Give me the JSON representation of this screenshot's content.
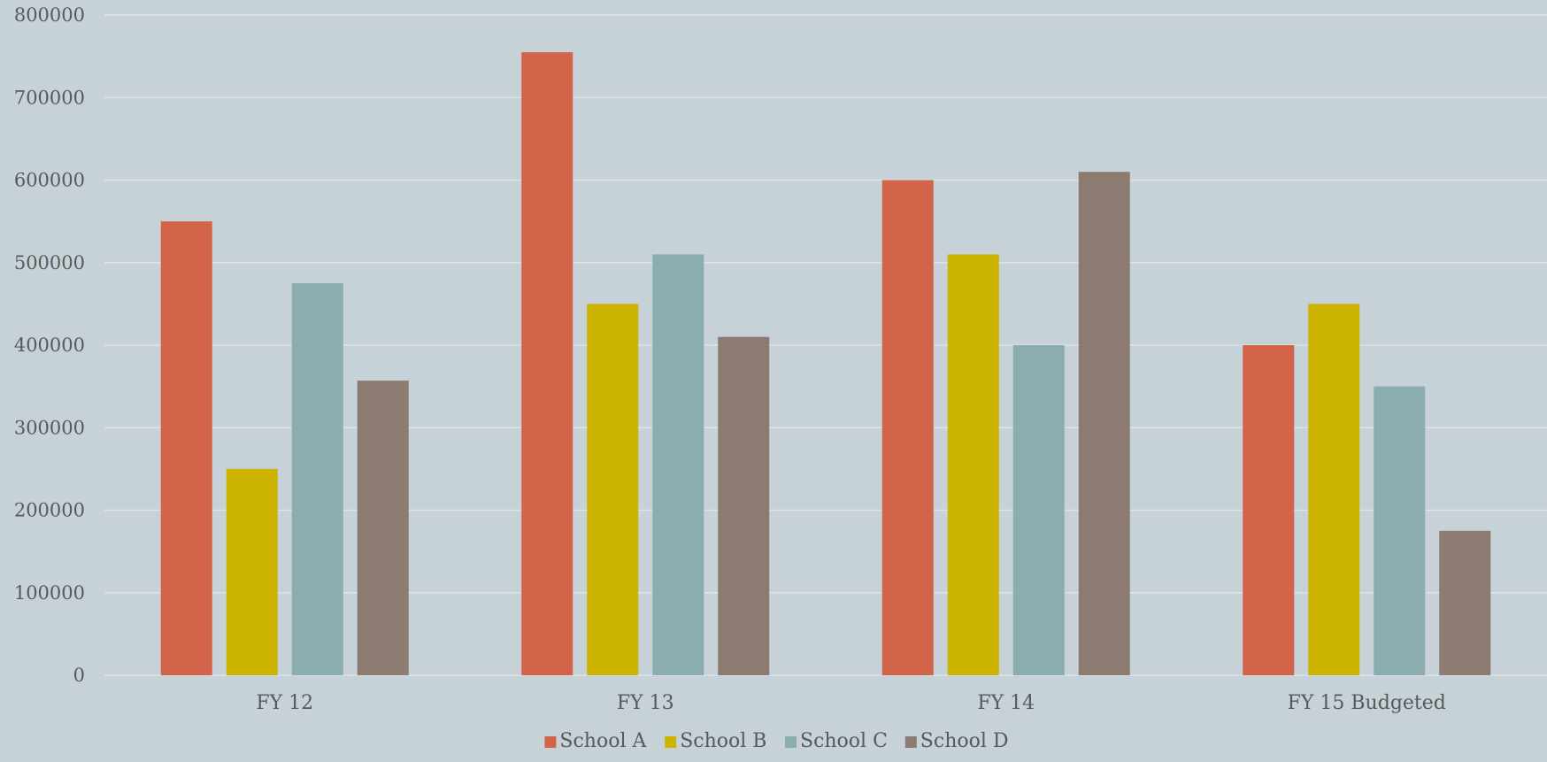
{
  "chart_data": {
    "type": "bar",
    "categories": [
      "FY 12",
      "FY 13",
      "FY 14",
      "FY 15 Budgeted"
    ],
    "series": [
      {
        "name": "School A",
        "color": "#d2644a",
        "values": [
          550000,
          755000,
          600000,
          400000
        ]
      },
      {
        "name": "School B",
        "color": "#ccb400",
        "values": [
          250000,
          450000,
          510000,
          450000
        ]
      },
      {
        "name": "School C",
        "color": "#8badaf",
        "values": [
          475000,
          510000,
          400000,
          350000
        ]
      },
      {
        "name": "School D",
        "color": "#8c7b70",
        "values": [
          357000,
          410000,
          610000,
          175000
        ]
      }
    ],
    "ylim": [
      0,
      800000
    ],
    "yticks": [
      "0",
      "100000",
      "200000",
      "300000",
      "400000",
      "500000",
      "600000",
      "700000",
      "800000"
    ],
    "grid": true,
    "legend_position": "bottom"
  }
}
